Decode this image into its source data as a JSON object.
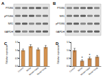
{
  "blots": [
    {
      "title": "A",
      "rows": [
        "P70S6",
        "pP70S6",
        "NR1",
        "GAPDH"
      ]
    },
    {
      "title": "B",
      "rows": [
        "P70S6",
        "NR1",
        "pP70S6",
        "GAPDH"
      ]
    }
  ],
  "chart_data": [
    {
      "title": "C",
      "type": "bar",
      "y_label": "Relative expression",
      "categories": [
        "Control",
        "Model",
        "Model+Rapa",
        "Model+Drug"
      ],
      "values": [
        1.0,
        1.25,
        1.05,
        1.2
      ],
      "errors": [
        0.08,
        0.1,
        0.09,
        0.1
      ],
      "color": "#d4924e",
      "ylim": [
        0,
        1.5
      ],
      "yticks": [
        {
          "value": 0,
          "label": "0.0"
        },
        {
          "value": 0.5,
          "label": "0.5"
        },
        {
          "value": 1,
          "label": "1.0"
        },
        {
          "value": 1.5,
          "label": "1.5"
        }
      ]
    },
    {
      "title": "D",
      "type": "bar",
      "y_label": "Relative expression",
      "categories": [
        "Control",
        "Model",
        "Model+Rapa",
        "Model+Drug"
      ],
      "values": [
        1.0,
        0.35,
        0.5,
        0.6
      ],
      "errors": [
        0.12,
        0.06,
        0.08,
        0.08
      ],
      "color": "#c8864a",
      "annotations": [
        {
          "text": "*",
          "at": "Model"
        },
        {
          "text": "*",
          "at": "Model+Rapa"
        }
      ],
      "ylim": [
        0,
        1.5
      ],
      "yticks": [
        {
          "value": 0,
          "label": "0.0"
        },
        {
          "value": 0.5,
          "label": "0.5"
        },
        {
          "value": 1,
          "label": "1.0"
        },
        {
          "value": 1.5,
          "label": "1.5"
        }
      ]
    }
  ]
}
